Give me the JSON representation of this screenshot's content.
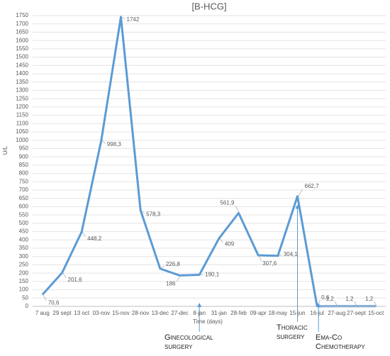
{
  "chart_data": {
    "type": "line",
    "title": "[B-HCG]",
    "y_label": "U/L",
    "x_label": "Time (days)",
    "categories": [
      "7 aug",
      "29 sept",
      "13 oct",
      "03-nov",
      "15-nov",
      "28-nov",
      "13-dec",
      "27-dec",
      "8-jan",
      "31-jan",
      "28-feb",
      "09-apr",
      "18-may",
      "15-jun",
      "16-jul",
      "27-aug",
      "27-sept",
      "15-oct"
    ],
    "series": [
      {
        "name": "B-HCG",
        "color": "#5b9bd5",
        "values": [
          70.6,
          201.6,
          448.2,
          998.3,
          1742,
          578.3,
          226.8,
          186,
          190.1,
          409,
          561.9,
          307.6,
          304.1,
          662.7,
          0.6,
          1.2,
          1.2,
          1.2
        ],
        "value_labels": [
          "70,6",
          "201,6",
          "448,2",
          "998,3",
          "1742",
          "578,3",
          "226,8",
          "186",
          "190,1",
          "409",
          "561,9",
          "307,6",
          "304,1",
          "662,7",
          "0,6",
          "1,2",
          "1,2",
          "1,2"
        ]
      }
    ],
    "ylim": [
      0,
      1750
    ],
    "yticks": [
      0,
      50,
      100,
      150,
      200,
      250,
      300,
      350,
      400,
      450,
      500,
      550,
      600,
      650,
      700,
      750,
      800,
      850,
      900,
      950,
      1000,
      1050,
      1100,
      1150,
      1200,
      1250,
      1300,
      1350,
      1400,
      1450,
      1500,
      1550,
      1600,
      1650,
      1700,
      1750
    ],
    "grid": true,
    "annotations": [
      "Ginecological surgery",
      "Thoracic surgery",
      "Ema-Co Chemotherapy"
    ]
  }
}
